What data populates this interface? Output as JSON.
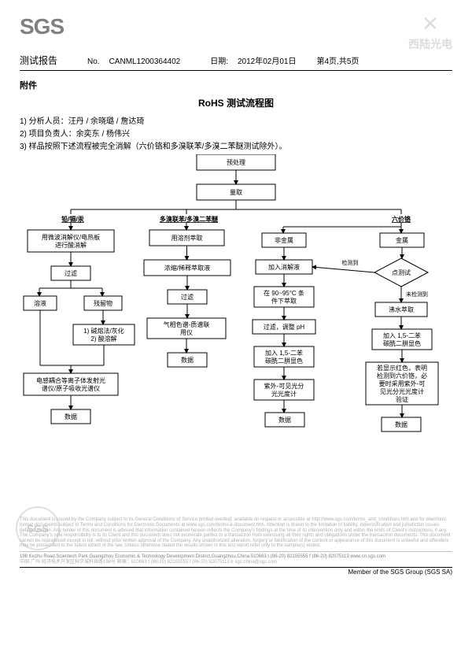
{
  "logo": "SGS",
  "watermark": {
    "text": "西陆光电"
  },
  "report_label": "测试报告",
  "doc_no_label": "No.",
  "doc_no": "CANML1200364402",
  "date_label": "日期:",
  "date": "2012年02月01日",
  "page": "第4页,共5页",
  "attachment_label": "附件",
  "flow_title": "RoHS 测试流程图",
  "info": {
    "l1": "1)  分析人员：汪丹 / 余晓璐 / 詹达琦",
    "l2": "2)  项目负责人：余奕东 / 杨伟兴",
    "l3": "3)  样品按照下述流程被完全消解（六价铬和多溴联苯/多溴二苯醚测试除外）。"
  },
  "nodes": {
    "pretreat": "预处理",
    "weigh": "量取",
    "h1": "铅/镉/汞",
    "h2": "多溴联苯/多溴二苯醚",
    "h3": "六价铬",
    "a1": "用微波消解仪/电热板\n进行酸消解",
    "a2": "过滤",
    "a3l": "溶液",
    "a3r": "残留物",
    "a4": "1) 碱熔法/灰化\n2) 酸溶解",
    "a5": "电感耦合等离子体发射光\n谱仪/原子吸收光谱仪",
    "a6": "数据",
    "b1": "用溶剂萃取",
    "b2": "浓缩/稀释萃取液",
    "b3": "过滤",
    "b4": "气相色谱-质谱联\n用仪",
    "b5": "数据",
    "cN": "非金属",
    "cM": "金属",
    "cn1": "加入消解液",
    "cn2": "在 90~95°C 条\n件下萃取",
    "cn3": "过滤，调整 pH",
    "cn4": "加入 1,5-二苯\n碳酰二肼显色",
    "cn5": "紫外-可见光分\n光光度计",
    "cn6": "数据",
    "cmD": "点测试",
    "cmDet": "检测到",
    "cmUndet": "未检测到",
    "cm1": "沸水萃取",
    "cm2": "加入 1,5-二苯\n碳酰二肼显色",
    "cm3": "若显示红色，表明\n检测到六价铬，必\n要时采用紫外-可\n见光分光光度计\n验证",
    "cm4": "数据"
  },
  "footer": {
    "legal": "This document is issued by the Company subject to its General Conditions of Service printed overleaf, available on request or accessible at http://www.sgs.com/terms_and_conditions.htm and for electronic format documents subject to Terms and Conditions for Electronic Documents at www.sgs.com/terms-e-document.htm. Attention is drawn to the limitation of liability, indemnification and jurisdiction issues defined therein. Any holder of this document is advised that information contained hereon reflects the Company's findings at the time of its intervention only and within the limits of Client's instructions, if any. The Company's sole responsibility is to its Client and this document does not exonerate parties to a transaction from exercising all their rights and obligations under the transaction documents. This document cannot be reproduced except in full, without prior written approval of the Company. Any unauthorized alteration, forgery or falsification of the content or appearance of this document is unlawful and offenders may be prosecuted to the fullest extent of the law. Unless otherwise stated the results shown in this test report refer only to the sample(s) tested.",
    "addr1": "198 Kezhu Road,Scientech Park Guangzhou Economic & Technology Development District,Guangzhou,China  510663   t  (86-20) 82155555   f  (86-20) 82075113   www.cn.sgs.com",
    "addr2": "中国·广州·经济技术开发区科学城科珠路198号                                                                                        邮编：510663   t  (86-20) 82155555   f  (86-20) 82075113   e  sgs.china@sgs.com",
    "member": "Member of the SGS Group (SGS SA)"
  },
  "style": {
    "box_stroke": "#000000",
    "box_fill": "#ffffff",
    "arrow": "#000000",
    "font_size": 8
  }
}
